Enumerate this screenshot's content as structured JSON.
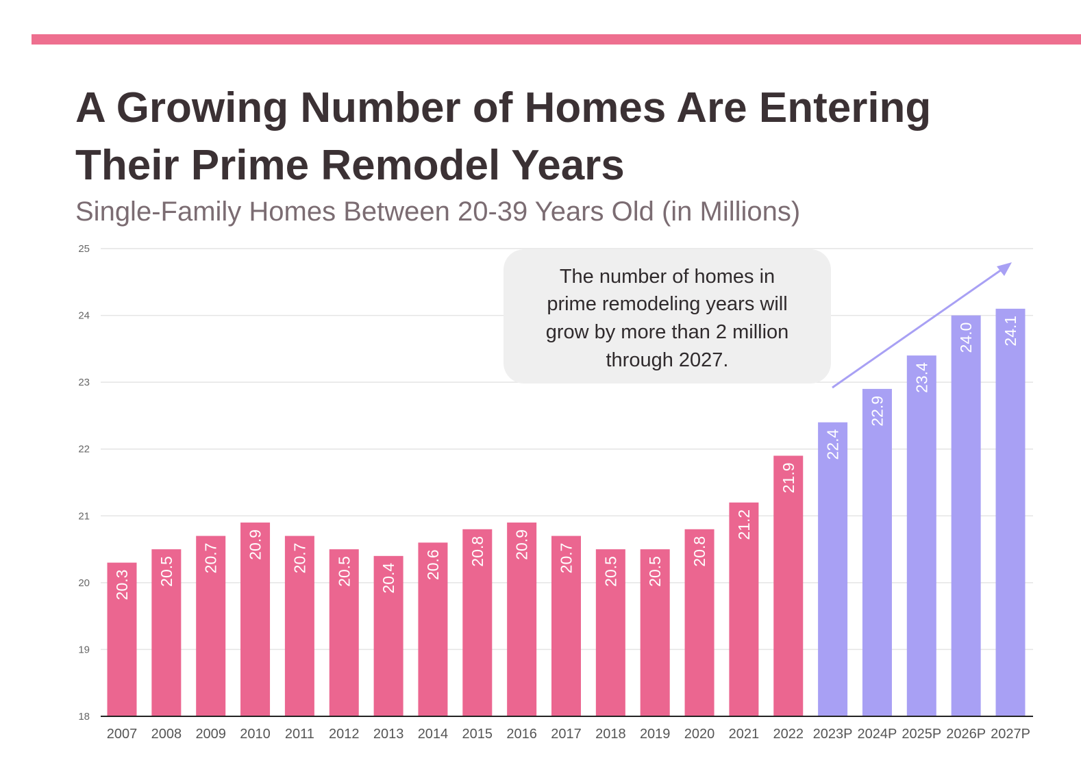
{
  "colors": {
    "accent_bar": "#EE6F8F",
    "actual": "#EB6690",
    "projected": "#A8A0F4",
    "arrow": "#A8A0F4",
    "callout_bg": "#EFEFEF"
  },
  "chart_data": {
    "type": "bar",
    "title_lines": [
      "A Growing Number of Homes Are Entering",
      "Their Prime Remodel Years"
    ],
    "subtitle": "Single-Family Homes Between 20-39 Years Old (in Millions)",
    "xlabel": "",
    "ylabel": "",
    "ylim": [
      18,
      25
    ],
    "yticks": [
      "18",
      "19",
      "20",
      "21",
      "22",
      "23",
      "24",
      "25"
    ],
    "grid": true,
    "categories": [
      "2007",
      "2008",
      "2009",
      "2010",
      "2011",
      "2012",
      "2013",
      "2014",
      "2015",
      "2016",
      "2017",
      "2018",
      "2019",
      "2020",
      "2021",
      "2022",
      "2023P",
      "2024P",
      "2025P",
      "2026P",
      "2027P"
    ],
    "values": [
      20.3,
      20.5,
      20.7,
      20.9,
      20.7,
      20.5,
      20.4,
      20.6,
      20.8,
      20.9,
      20.7,
      20.5,
      20.5,
      20.8,
      21.2,
      21.9,
      22.4,
      22.9,
      23.4,
      24.0,
      24.1
    ],
    "value_labels": [
      "20.3",
      "20.5",
      "20.7",
      "20.9",
      "20.7",
      "20.5",
      "20.4",
      "20.6",
      "20.8",
      "20.9",
      "20.7",
      "20.5",
      "20.5",
      "20.8",
      "21.2",
      "21.9",
      "22.4",
      "22.9",
      "23.4",
      "24.0",
      "24.1"
    ],
    "projected": [
      false,
      false,
      false,
      false,
      false,
      false,
      false,
      false,
      false,
      false,
      false,
      false,
      false,
      false,
      false,
      false,
      true,
      true,
      true,
      true,
      true
    ],
    "annotation": {
      "lines": [
        "The number  of homes  in",
        "prime  remodeling  years will",
        "grow by more than 2 million",
        "through  2027."
      ]
    }
  }
}
